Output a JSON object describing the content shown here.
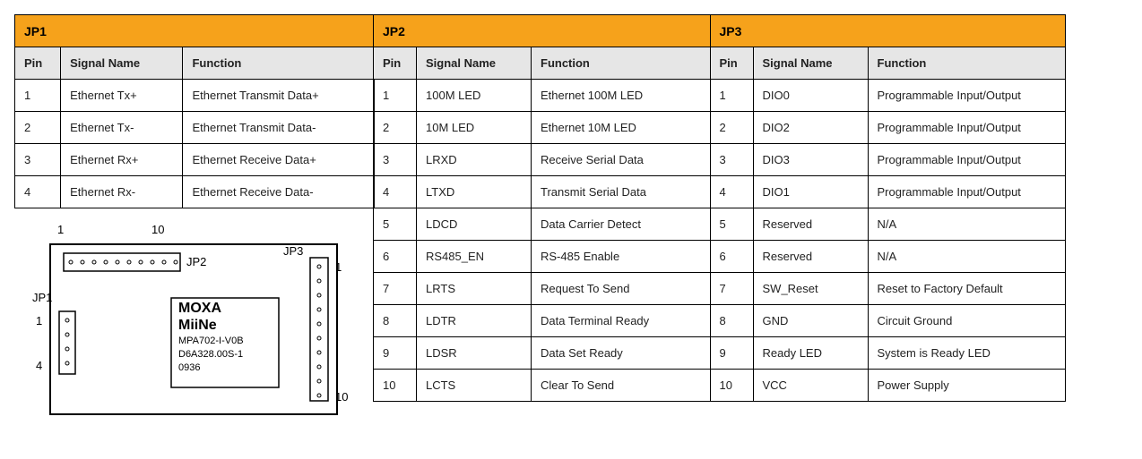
{
  "colors": {
    "header_bg": "#f6a21b",
    "subheader_bg": "#e6e6e6",
    "border": "#000000",
    "text": "#000000",
    "pcb_stroke": "#000000",
    "pcb_fill": "#ffffff"
  },
  "jp1": {
    "title": "JP1",
    "columns": {
      "pin": "Pin",
      "signal": "Signal Name",
      "function": "Function"
    },
    "rows": [
      {
        "pin": "1",
        "signal": "Ethernet Tx+",
        "function": "Ethernet Transmit Data+"
      },
      {
        "pin": "2",
        "signal": "Ethernet Tx-",
        "function": "Ethernet Transmit Data-"
      },
      {
        "pin": "3",
        "signal": "Ethernet Rx+",
        "function": "Ethernet Receive Data+"
      },
      {
        "pin": "4",
        "signal": "Ethernet Rx-",
        "function": "Ethernet Receive Data-"
      }
    ]
  },
  "jp2": {
    "title": "JP2",
    "columns": {
      "pin": "Pin",
      "signal": "Signal Name",
      "function": "Function"
    },
    "rows": [
      {
        "pin": "1",
        "signal": "100M LED",
        "function": "Ethernet 100M LED"
      },
      {
        "pin": "2",
        "signal": "10M LED",
        "function": "Ethernet 10M LED"
      },
      {
        "pin": "3",
        "signal": "LRXD",
        "function": "Receive Serial Data"
      },
      {
        "pin": "4",
        "signal": "LTXD",
        "function": "Transmit Serial Data"
      },
      {
        "pin": "5",
        "signal": "LDCD",
        "function": "Data Carrier Detect"
      },
      {
        "pin": "6",
        "signal": "RS485_EN",
        "function": "RS-485 Enable"
      },
      {
        "pin": "7",
        "signal": "LRTS",
        "function": "Request To Send"
      },
      {
        "pin": "8",
        "signal": "LDTR",
        "function": "Data Terminal Ready"
      },
      {
        "pin": "9",
        "signal": "LDSR",
        "function": "Data Set Ready"
      },
      {
        "pin": "10",
        "signal": "LCTS",
        "function": "Clear To Send"
      }
    ]
  },
  "jp3": {
    "title": "JP3",
    "columns": {
      "pin": "Pin",
      "signal": "Signal Name",
      "function": "Function"
    },
    "rows": [
      {
        "pin": "1",
        "signal": "DIO0",
        "function": "Programmable Input/Output"
      },
      {
        "pin": "2",
        "signal": "DIO2",
        "function": "Programmable Input/Output"
      },
      {
        "pin": "3",
        "signal": "DIO3",
        "function": "Programmable Input/Output"
      },
      {
        "pin": "4",
        "signal": "DIO1",
        "function": "Programmable Input/Output"
      },
      {
        "pin": "5",
        "signal": "Reserved",
        "function": "N/A"
      },
      {
        "pin": "6",
        "signal": "Reserved",
        "function": "N/A"
      },
      {
        "pin": "7",
        "signal": "SW_Reset",
        "function": "Reset to Factory Default"
      },
      {
        "pin": "8",
        "signal": "GND",
        "function": "Circuit Ground"
      },
      {
        "pin": "9",
        "signal": "Ready LED",
        "function": "System is Ready LED"
      },
      {
        "pin": "10",
        "signal": "VCC",
        "function": "Power Supply"
      }
    ]
  },
  "pcb": {
    "jp2_start": "1",
    "jp2_end": "10",
    "jp2_label": "JP2",
    "jp3_label": "JP3",
    "jp3_start": "1",
    "jp3_end": "10",
    "jp1_label": "JP1",
    "jp1_start": "1",
    "jp1_end": "4",
    "chip_line1": "MOXA",
    "chip_line2": "MiiNe",
    "chip_line3": "MPA702-I-V0B",
    "chip_line4": "D6A328.00S-1",
    "chip_line5": "0936"
  }
}
